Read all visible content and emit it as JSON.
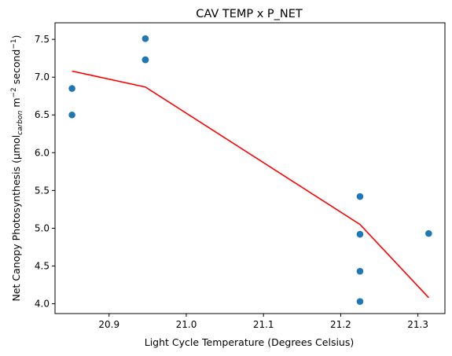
{
  "chart_data": {
    "type": "scatter",
    "title": "CAV TEMP x P_NET",
    "xlabel": "Light Cycle Temperature (Degrees Celsius)",
    "ylabel": {
      "prefix": "Net Canopy Photosynthesis (μmol",
      "subscript": "carbon",
      "middle": " m",
      "sup1": "−2",
      "middle2": " second",
      "sup2": "−1",
      "suffix": ")"
    },
    "xlim": [
      20.83,
      21.335
    ],
    "ylim": [
      3.87,
      7.72
    ],
    "xticks": [
      20.9,
      21.0,
      21.1,
      21.2,
      21.3
    ],
    "xtick_labels": [
      "20.9",
      "21.0",
      "21.1",
      "21.2",
      "21.3"
    ],
    "yticks": [
      4.0,
      4.5,
      5.0,
      5.5,
      6.0,
      6.5,
      7.0,
      7.5
    ],
    "ytick_labels": [
      "4.0",
      "4.5",
      "5.0",
      "5.5",
      "6.0",
      "6.5",
      "7.0",
      "7.5"
    ],
    "grid": false,
    "series": [
      {
        "kind": "scatter",
        "color": "#1f77b4",
        "points": [
          {
            "x": 20.852,
            "y": 6.85
          },
          {
            "x": 20.852,
            "y": 6.5
          },
          {
            "x": 20.947,
            "y": 7.51
          },
          {
            "x": 20.947,
            "y": 7.23
          },
          {
            "x": 20.947,
            "y": 7.23
          },
          {
            "x": 21.225,
            "y": 5.42
          },
          {
            "x": 21.225,
            "y": 4.92
          },
          {
            "x": 21.225,
            "y": 4.43
          },
          {
            "x": 21.225,
            "y": 4.03
          },
          {
            "x": 21.314,
            "y": 4.93
          }
        ]
      },
      {
        "kind": "line",
        "color": "#ff0000",
        "points": [
          {
            "x": 20.852,
            "y": 7.08
          },
          {
            "x": 20.947,
            "y": 6.87
          },
          {
            "x": 21.225,
            "y": 5.05
          },
          {
            "x": 21.314,
            "y": 4.08
          }
        ]
      }
    ]
  }
}
